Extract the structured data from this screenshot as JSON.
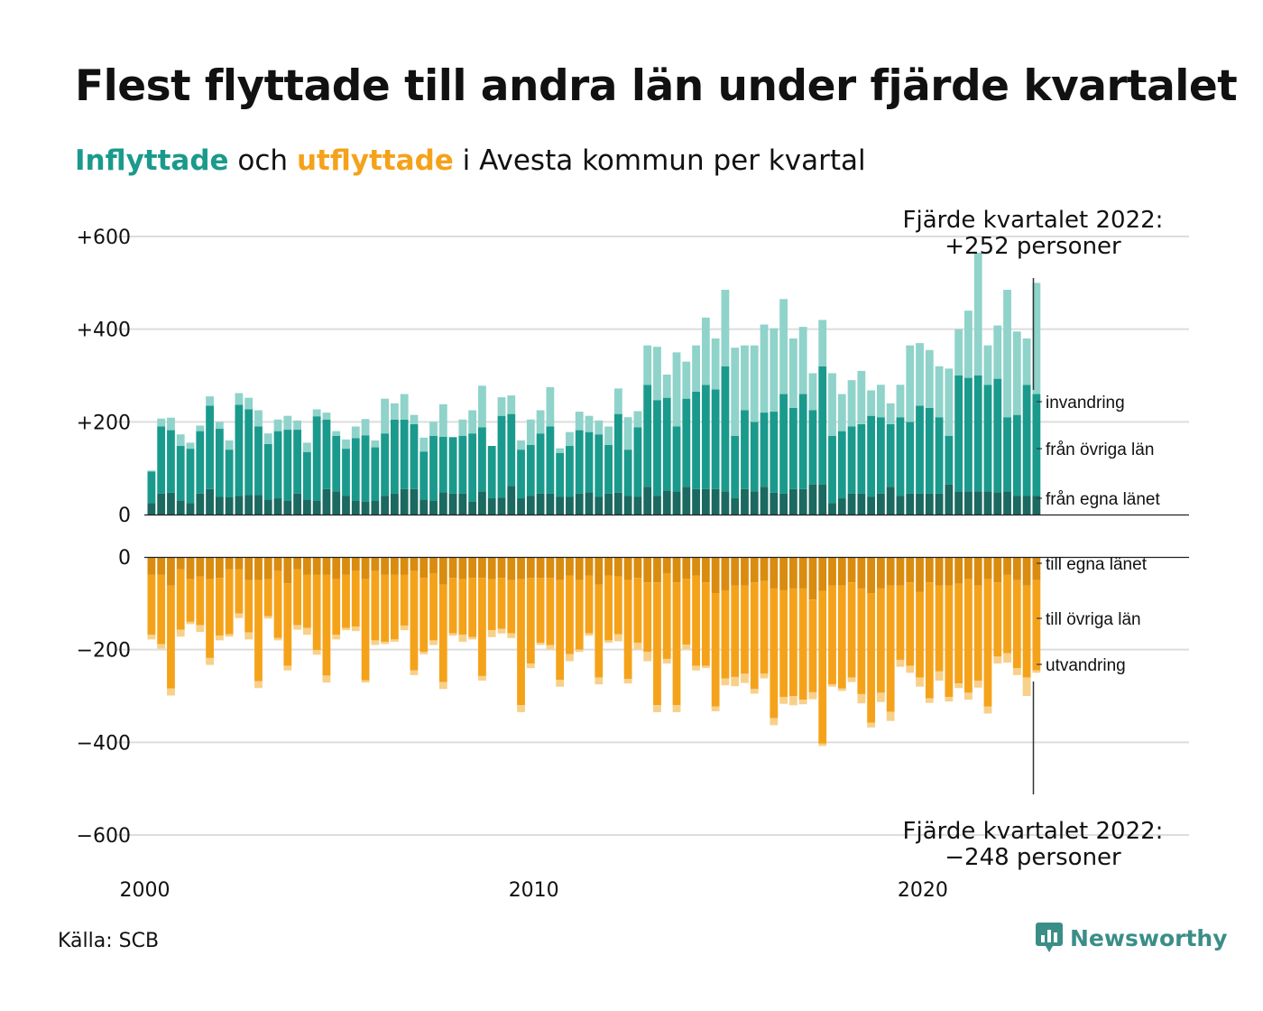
{
  "header": {
    "title": "Flest flyttade till andra län under fjärde kvartalet",
    "subtitle_in": "Inflyttade",
    "subtitle_mid": " och ",
    "subtitle_out": "utflyttade",
    "subtitle_rest": " i Avesta kommun per kvartal"
  },
  "annotations": {
    "in_line1": "Fjärde kvartalet 2022:",
    "in_line2": "+252 personer",
    "out_line1": "Fjärde kvartalet 2022:",
    "out_line2": "−248 personer"
  },
  "footer": {
    "source": "Källa: SCB",
    "brand": "Newsworthy"
  },
  "colors": {
    "in_egna": "#1b6960",
    "in_ovriga": "#1a9a8c",
    "in_invandring": "#8fd3ca",
    "out_egna": "#d98c0f",
    "out_ovriga": "#f5a21b",
    "out_utvandring": "#f8d089",
    "grid": "#dddddd",
    "brand": "#3b8e88"
  },
  "chart_data": {
    "type": "bar",
    "stacked": true,
    "start_quarter": "2000 Q1",
    "end_quarter": "2022 Q4",
    "x_ticks": [
      "2000",
      "2010",
      "2020"
    ],
    "top_panel": {
      "y_ticks": [
        "+600",
        "+400",
        "+200",
        "0"
      ],
      "ylim": [
        0,
        600
      ],
      "series": [
        {
          "name": "från egna länet",
          "values": [
            25,
            45,
            47,
            30,
            25,
            45,
            55,
            38,
            37,
            40,
            42,
            42,
            32,
            35,
            30,
            45,
            32,
            30,
            55,
            50,
            40,
            30,
            28,
            30,
            40,
            45,
            55,
            55,
            32,
            30,
            48,
            45,
            45,
            28,
            50,
            35,
            36,
            62,
            35,
            40,
            45,
            45,
            38,
            38,
            45,
            48,
            38,
            45,
            47,
            40,
            38,
            60,
            40,
            52,
            50,
            60,
            55,
            55,
            55,
            50,
            35,
            55,
            50,
            60,
            47,
            45,
            55,
            55,
            65,
            65,
            25,
            35,
            45,
            45,
            38,
            45,
            60,
            40,
            45,
            45,
            45,
            45,
            65,
            50,
            50,
            50,
            50,
            48,
            50,
            40,
            40,
            40
          ]
        },
        {
          "name": "från övriga län",
          "values": [
            68,
            145,
            135,
            118,
            117,
            135,
            180,
            147,
            103,
            197,
            185,
            148,
            120,
            145,
            153,
            138,
            103,
            182,
            150,
            120,
            102,
            135,
            143,
            115,
            135,
            160,
            150,
            140,
            104,
            140,
            120,
            122,
            125,
            147,
            138,
            113,
            177,
            155,
            105,
            110,
            130,
            145,
            95,
            110,
            137,
            130,
            135,
            105,
            170,
            100,
            150,
            220,
            207,
            200,
            140,
            190,
            210,
            225,
            215,
            270,
            135,
            170,
            150,
            160,
            175,
            215,
            175,
            205,
            160,
            255,
            145,
            145,
            145,
            150,
            175,
            165,
            135,
            170,
            155,
            190,
            185,
            165,
            105,
            250,
            245,
            250,
            230,
            245,
            160,
            175,
            240,
            220
          ]
        },
        {
          "name": "invandring",
          "values": [
            2,
            17,
            27,
            25,
            13,
            12,
            20,
            15,
            20,
            25,
            25,
            35,
            23,
            25,
            30,
            20,
            20,
            15,
            15,
            10,
            20,
            25,
            35,
            15,
            75,
            35,
            55,
            20,
            30,
            30,
            70,
            0,
            35,
            50,
            90,
            0,
            40,
            40,
            20,
            55,
            50,
            85,
            10,
            30,
            40,
            35,
            30,
            40,
            55,
            70,
            35,
            85,
            115,
            50,
            160,
            80,
            100,
            145,
            110,
            165,
            190,
            140,
            165,
            190,
            180,
            205,
            150,
            145,
            80,
            100,
            135,
            80,
            100,
            115,
            55,
            70,
            45,
            70,
            165,
            135,
            125,
            110,
            145,
            100,
            145,
            265,
            85,
            115,
            275,
            180,
            100,
            240
          ]
        }
      ]
    },
    "bottom_panel": {
      "y_ticks": [
        "0",
        "−200",
        "−400",
        "−600"
      ],
      "ylim": [
        -600,
        0
      ],
      "series": [
        {
          "name": "till egna länet",
          "values": [
            -38,
            -38,
            -62,
            -27,
            -48,
            -42,
            -48,
            -45,
            -27,
            -27,
            -50,
            -50,
            -48,
            -30,
            -57,
            -27,
            -38,
            -38,
            -38,
            -48,
            -38,
            -30,
            -48,
            -30,
            -38,
            -38,
            -38,
            -30,
            -45,
            -35,
            -60,
            -45,
            -48,
            -45,
            -45,
            -48,
            -45,
            -50,
            -48,
            -45,
            -45,
            -45,
            -50,
            -40,
            -50,
            -40,
            -60,
            -40,
            -42,
            -50,
            -45,
            -55,
            -55,
            -35,
            -55,
            -47,
            -40,
            -55,
            -78,
            -72,
            -62,
            -62,
            -55,
            -52,
            -68,
            -72,
            -68,
            -68,
            -92,
            -73,
            -62,
            -62,
            -55,
            -68,
            -78,
            -68,
            -62,
            -62,
            -55,
            -75,
            -55,
            -62,
            -62,
            -58,
            -48,
            -62,
            -48,
            -55,
            -38,
            -50,
            -62,
            -50
          ]
        },
        {
          "name": "till övriga län",
          "values": [
            -130,
            -150,
            -222,
            -130,
            -92,
            -105,
            -170,
            -125,
            -140,
            -95,
            -113,
            -218,
            -80,
            -145,
            -178,
            -120,
            -115,
            -163,
            -218,
            -120,
            -115,
            -120,
            -218,
            -150,
            -145,
            -140,
            -110,
            -215,
            -160,
            -145,
            -210,
            -120,
            -120,
            -128,
            -212,
            -110,
            -110,
            -115,
            -272,
            -185,
            -140,
            -145,
            -215,
            -170,
            -150,
            -125,
            -200,
            -140,
            -125,
            -213,
            -140,
            -150,
            -265,
            -185,
            -265,
            -142,
            -195,
            -180,
            -245,
            -190,
            -197,
            -190,
            -230,
            -200,
            -280,
            -230,
            -232,
            -240,
            -200,
            -330,
            -213,
            -222,
            -205,
            -228,
            -280,
            -225,
            -272,
            -160,
            -180,
            -185,
            -250,
            -185,
            -240,
            -215,
            -245,
            -205,
            -275,
            -160,
            -170,
            -190,
            -198,
            -195
          ]
        },
        {
          "name": "utvandring",
          "values": [
            -10,
            -10,
            -15,
            -15,
            -5,
            -15,
            -15,
            -10,
            -5,
            -10,
            -15,
            -15,
            -5,
            -5,
            -10,
            -10,
            -15,
            -10,
            -15,
            -10,
            -5,
            -10,
            -5,
            -10,
            -5,
            -5,
            -10,
            -10,
            -5,
            -10,
            -15,
            -5,
            -15,
            -5,
            -10,
            -15,
            -10,
            -10,
            -15,
            -10,
            -5,
            -10,
            -15,
            -15,
            -5,
            -5,
            -15,
            -5,
            -15,
            -10,
            -15,
            -20,
            -15,
            -10,
            -15,
            -10,
            -10,
            -5,
            -10,
            -15,
            -20,
            -20,
            -10,
            -10,
            -15,
            -15,
            -20,
            -10,
            -15,
            -5,
            -5,
            -5,
            -10,
            -20,
            -10,
            -20,
            -20,
            -15,
            -15,
            -20,
            -10,
            -20,
            -10,
            -10,
            -15,
            -15,
            -15,
            -15,
            -20,
            -15,
            -40,
            -5
          ]
        }
      ]
    },
    "series_labels_top": [
      "invandring",
      "från övriga län",
      "från egna länet"
    ],
    "series_labels_bottom": [
      "till egna länet",
      "till övriga län",
      "utvandring"
    ]
  }
}
